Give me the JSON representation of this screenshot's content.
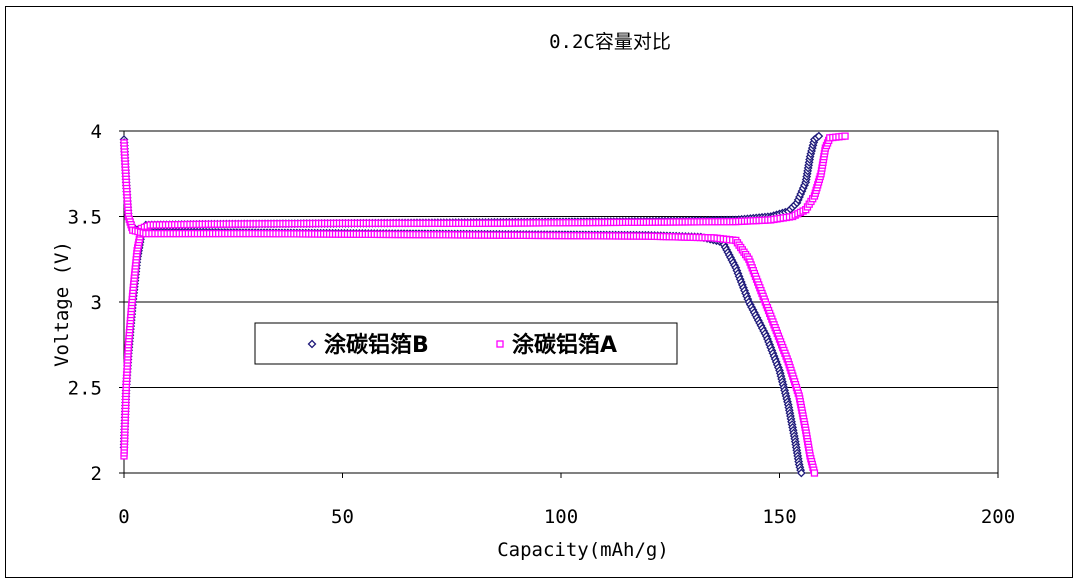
{
  "chart_data": {
    "type": "scatter",
    "title": "0.2C容量对比",
    "xlabel": "Capacity(mAh/g)",
    "ylabel": "Voltage (V)",
    "xlim": [
      0,
      200
    ],
    "ylim": [
      2,
      4
    ],
    "xticks": [
      0,
      50,
      100,
      150,
      200
    ],
    "yticks": [
      2,
      2.5,
      3,
      3.5,
      4
    ],
    "ytick_labels": [
      "2",
      "2.5",
      "3",
      "3.5",
      "4"
    ],
    "grid": "horizontal",
    "legend": "center-left",
    "series": [
      {
        "name": "涂碳铝箔B",
        "color": "#1f1a7a",
        "marker": "diamond",
        "segments": [
          {
            "label": "charge",
            "points": [
              [
                0,
                2.15
              ],
              [
                0.5,
                2.5
              ],
              [
                1,
                2.7
              ],
              [
                2,
                3.0
              ],
              [
                3,
                3.25
              ],
              [
                4,
                3.4
              ],
              [
                5,
                3.45
              ],
              [
                20,
                3.455
              ],
              [
                50,
                3.46
              ],
              [
                80,
                3.465
              ],
              [
                110,
                3.47
              ],
              [
                130,
                3.475
              ],
              [
                140,
                3.48
              ],
              [
                148,
                3.5
              ],
              [
                152,
                3.53
              ],
              [
                154,
                3.58
              ],
              [
                156,
                3.7
              ],
              [
                157,
                3.85
              ],
              [
                158,
                3.95
              ],
              [
                159,
                3.97
              ]
            ]
          },
          {
            "label": "discharge",
            "points": [
              [
                0,
                3.95
              ],
              [
                0.5,
                3.7
              ],
              [
                1,
                3.5
              ],
              [
                2,
                3.43
              ],
              [
                5,
                3.41
              ],
              [
                30,
                3.405
              ],
              [
                60,
                3.4
              ],
              [
                90,
                3.395
              ],
              [
                120,
                3.39
              ],
              [
                132,
                3.38
              ],
              [
                137,
                3.35
              ],
              [
                140,
                3.2
              ],
              [
                143,
                3.0
              ],
              [
                147,
                2.8
              ],
              [
                150,
                2.6
              ],
              [
                152,
                2.4
              ],
              [
                153.5,
                2.2
              ],
              [
                154.5,
                2.05
              ],
              [
                155,
                2.0
              ]
            ]
          }
        ]
      },
      {
        "name": "涂碳铝箔A",
        "color": "#ff00ff",
        "marker": "square",
        "segments": [
          {
            "label": "charge",
            "points": [
              [
                0,
                2.1
              ],
              [
                0.5,
                2.5
              ],
              [
                1,
                2.75
              ],
              [
                2,
                3.05
              ],
              [
                3,
                3.3
              ],
              [
                4,
                3.43
              ],
              [
                6,
                3.45
              ],
              [
                20,
                3.455
              ],
              [
                50,
                3.46
              ],
              [
                80,
                3.46
              ],
              [
                110,
                3.465
              ],
              [
                140,
                3.47
              ],
              [
                148,
                3.48
              ],
              [
                153,
                3.5
              ],
              [
                156,
                3.54
              ],
              [
                158,
                3.62
              ],
              [
                159.5,
                3.75
              ],
              [
                160.5,
                3.9
              ],
              [
                161.5,
                3.96
              ],
              [
                165,
                3.97
              ]
            ]
          },
          {
            "label": "discharge",
            "points": [
              [
                0,
                3.93
              ],
              [
                0.5,
                3.7
              ],
              [
                1,
                3.5
              ],
              [
                2,
                3.42
              ],
              [
                5,
                3.4
              ],
              [
                30,
                3.4
              ],
              [
                60,
                3.395
              ],
              [
                90,
                3.39
              ],
              [
                120,
                3.385
              ],
              [
                135,
                3.375
              ],
              [
                140,
                3.36
              ],
              [
                143,
                3.25
              ],
              [
                146,
                3.05
              ],
              [
                149,
                2.85
              ],
              [
                152,
                2.65
              ],
              [
                154.5,
                2.45
              ],
              [
                156,
                2.25
              ],
              [
                157,
                2.1
              ],
              [
                158,
                2.0
              ]
            ]
          }
        ]
      }
    ]
  }
}
